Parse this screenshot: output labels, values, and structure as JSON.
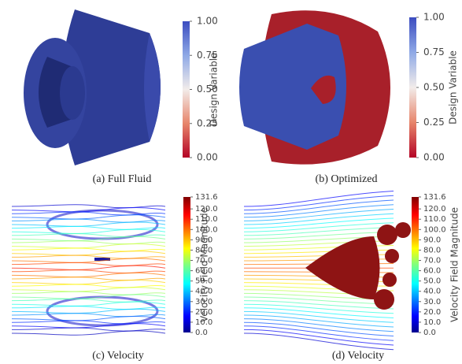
{
  "panels": [
    {
      "caption": "(a) Full Fluid",
      "colorbar": {
        "title": "Design Variable",
        "ticks": [
          "1.00",
          "0.75",
          "0.50",
          "0.25",
          "0.00"
        ]
      }
    },
    {
      "caption": "(b) Optimized",
      "colorbar": {
        "title": "Design Variable",
        "ticks": [
          "1.00",
          "0.75",
          "0.50",
          "0.25",
          "0.00"
        ]
      }
    },
    {
      "caption": "(c) Velocity",
      "colorbar": {
        "title": "Velocity Field Magnitude",
        "ticks": [
          "131.6",
          "120.0",
          "110.0",
          "100.0",
          "90.0",
          "80.0",
          "70.0",
          "60.0",
          "50.0",
          "40.0",
          "30.0",
          "20.0",
          "10.0",
          "0.0"
        ]
      }
    },
    {
      "caption": "(d) Velocity",
      "colorbar": {
        "title": "Velocity Field Magnitude",
        "ticks": [
          "131.6",
          "120.0",
          "110.0",
          "100.0",
          "90.0",
          "80.0",
          "70.0",
          "60.0",
          "50.0",
          "40.0",
          "30.0",
          "20.0",
          "10.0",
          "0.0"
        ]
      }
    }
  ]
}
